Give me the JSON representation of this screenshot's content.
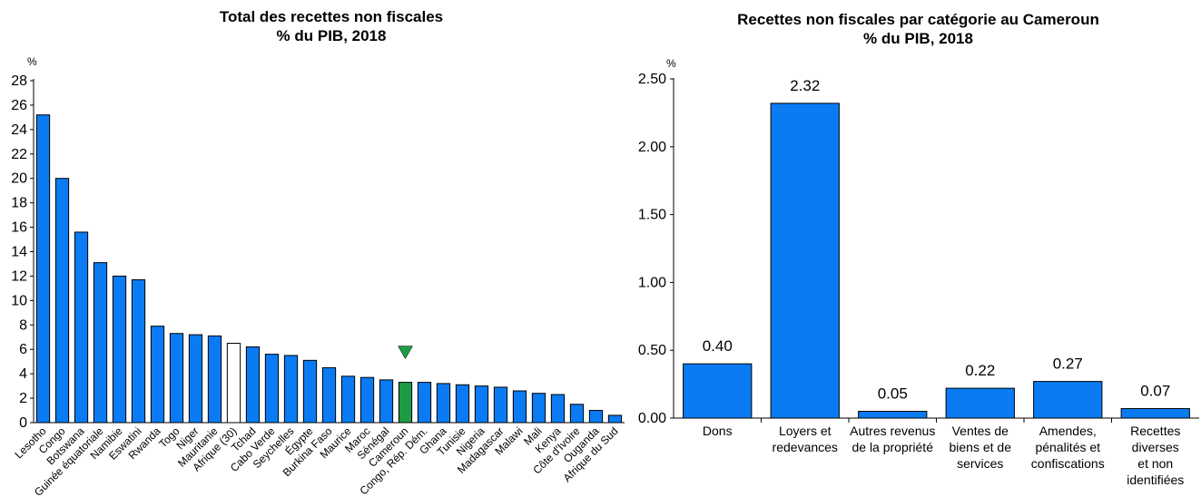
{
  "colors": {
    "bar": "#0A7BF2",
    "highlight": "#1E9B45",
    "average": "#FFFFFF",
    "marker": "#1E9B45",
    "stroke": "#000000"
  },
  "chart_data": [
    {
      "type": "bar",
      "title": "Total des recettes non fiscales",
      "subtitle": "% du PIB, 2018",
      "ylabel": "%",
      "ylim": [
        0,
        28
      ],
      "yticks": [
        0,
        2,
        4,
        6,
        8,
        10,
        12,
        14,
        16,
        18,
        20,
        22,
        24,
        26,
        28
      ],
      "categories": [
        "Lesotho",
        "Congo",
        "Botswana",
        "Guinée équatoriale",
        "Namibie",
        "Eswatini",
        "Rwanda",
        "Togo",
        "Niger",
        "Mauritanie",
        "Afrique (30)",
        "Tchad",
        "Cabo Verde",
        "Seychelles",
        "Égypte",
        "Burkina Faso",
        "Maurice",
        "Maroc",
        "Sénégal",
        "Cameroun",
        "Congo, Rép. Dém.",
        "Ghana",
        "Tunisie",
        "Nigeria",
        "Madagascar",
        "Malawi",
        "Mali",
        "Kenya",
        "Côte d'Ivoire",
        "Ouganda",
        "Afrique du Sud"
      ],
      "values": [
        25.2,
        20.0,
        15.6,
        13.1,
        12.0,
        11.7,
        7.9,
        7.3,
        7.2,
        7.1,
        6.5,
        6.2,
        5.6,
        5.5,
        5.1,
        4.5,
        3.8,
        3.7,
        3.5,
        3.3,
        3.3,
        3.2,
        3.1,
        3.0,
        2.9,
        2.6,
        2.4,
        2.3,
        1.5,
        1.0,
        0.6
      ],
      "highlight": "Cameroun",
      "average": "Afrique (30)",
      "grid": false
    },
    {
      "type": "bar",
      "title": "Recettes non fiscales par catégorie au Cameroun",
      "subtitle": "% du PIB, 2018",
      "ylabel": "%",
      "ylim": [
        0,
        2.5
      ],
      "yticks": [
        "0.00",
        "0.50",
        "1.00",
        "1.50",
        "2.00",
        "2.50"
      ],
      "categories": [
        [
          "Dons"
        ],
        [
          "Loyers et",
          "redevances"
        ],
        [
          "Autres revenus",
          "de la propriété"
        ],
        [
          "Ventes de",
          "biens et de",
          "services"
        ],
        [
          "Amendes,",
          "pénalités et",
          "confiscations"
        ],
        [
          "Recettes",
          "diverses",
          "et non",
          "identifiées"
        ]
      ],
      "values": [
        0.4,
        2.32,
        0.05,
        0.22,
        0.27,
        0.07
      ],
      "data_labels": [
        "0.40",
        "2.32",
        "0.05",
        "0.22",
        "0.27",
        "0.07"
      ],
      "grid": false
    }
  ]
}
